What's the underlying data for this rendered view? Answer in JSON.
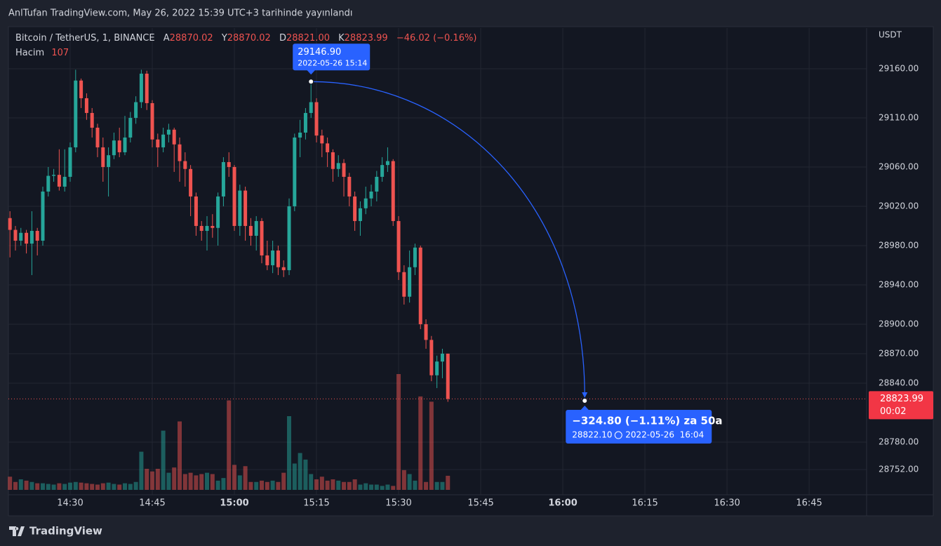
{
  "publish_note": "AnlTufan TradingView.com, May 26, 2022 15:39 UTC+3 tarihinde yayınlandı",
  "header": {
    "symbol": "Bitcoin / TetherUS, 1, BINANCE",
    "open_key": "A",
    "open": "28870.02",
    "high_key": "Y",
    "high": "28870.02",
    "low_key": "D",
    "low": "28821.00",
    "close_key": "K",
    "close": "28823.99",
    "change": "−46.02 (−0.16%)",
    "volume_key": "Hacim",
    "volume": "107"
  },
  "brand": "TradingView",
  "chart_data": {
    "type": "candlestick",
    "currency": "USDT",
    "up_color": "#26a69a",
    "down_color": "#ef5350",
    "x": [
      859,
      860,
      861,
      862,
      863,
      864,
      865,
      866,
      867,
      868,
      869,
      870,
      871,
      872,
      873,
      874,
      875,
      876,
      877,
      878,
      879,
      880,
      881,
      882,
      883,
      884,
      885,
      886,
      887,
      888,
      889,
      890,
      891,
      892,
      893,
      894,
      895,
      896,
      897,
      898,
      899,
      900,
      901,
      902,
      903,
      904,
      905,
      906,
      907,
      908,
      909,
      910,
      911,
      912,
      913,
      914,
      915,
      916,
      917,
      918,
      919,
      920,
      921,
      922,
      923,
      924,
      925,
      926,
      927,
      928,
      929,
      930,
      931,
      932,
      933,
      934,
      935,
      936,
      937,
      938,
      939
    ],
    "open": [
      29008,
      28996,
      28985,
      28993,
      28982,
      28995,
      28985,
      29035,
      29051,
      29052,
      29040,
      29050,
      29080,
      29148,
      29130,
      29115,
      29100,
      29080,
      29060,
      29072,
      29087,
      29075,
      29090,
      29110,
      29126,
      29155,
      29125,
      29088,
      29080,
      29093,
      29098,
      29083,
      29066,
      29058,
      29030,
      29000,
      28995,
      29000,
      28998,
      29030,
      29065,
      29060,
      29000,
      29036,
      29000,
      28990,
      29005,
      28970,
      28960,
      28975,
      28958,
      28955,
      29020,
      29090,
      29095,
      29115,
      29126,
      29092,
      29084,
      29075,
      29058,
      29064,
      29050,
      29030,
      29005,
      29018,
      29028,
      29035,
      29050,
      29062,
      29066,
      29005,
      28953,
      28928,
      28958,
      28978,
      28900,
      28884,
      28848,
      28862,
      28870.02
    ],
    "high": [
      29015,
      29000,
      28998,
      28996,
      29015,
      28998,
      29040,
      29060,
      29058,
      29078,
      29078,
      29085,
      29159,
      29150,
      29135,
      29120,
      29104,
      29090,
      29080,
      29095,
      29100,
      29112,
      29116,
      29132,
      29159,
      29158,
      29128,
      29094,
      29100,
      29104,
      29100,
      29090,
      29075,
      29062,
      29034,
      29005,
      29010,
      29012,
      29034,
      29070,
      29075,
      29062,
      29042,
      29040,
      29008,
      29010,
      29008,
      28985,
      28985,
      28980,
      28965,
      29028,
      29094,
      29108,
      29120,
      29146.9,
      29130,
      29098,
      29090,
      29078,
      29072,
      29068,
      29054,
      29035,
      29025,
      29040,
      29042,
      29056,
      29070,
      29080,
      29068,
      29010,
      28960,
      28975,
      28982,
      28980,
      28905,
      28888,
      28868,
      28875,
      28870.02
    ],
    "low": [
      28968,
      28975,
      28980,
      28972,
      28950,
      28970,
      28980,
      29030,
      29045,
      29036,
      29035,
      29045,
      29075,
      29120,
      29108,
      29090,
      29070,
      29045,
      29030,
      29068,
      29070,
      29072,
      29085,
      29104,
      29120,
      29118,
      29080,
      29060,
      29075,
      29085,
      29055,
      29045,
      29040,
      29010,
      28990,
      28985,
      28975,
      28988,
      28980,
      29020,
      29050,
      28995,
      28990,
      28985,
      28980,
      28975,
      28962,
      28955,
      28952,
      28950,
      28948,
      28950,
      29015,
      29070,
      29088,
      29110,
      29085,
      29070,
      29060,
      29045,
      29050,
      29030,
      29020,
      28995,
      28990,
      29012,
      29020,
      29025,
      29045,
      29055,
      29000,
      28945,
      28920,
      28922,
      28950,
      28895,
      28875,
      28842,
      28835,
      28845,
      28821
    ],
    "close": [
      28996,
      28985,
      28993,
      28982,
      28995,
      28985,
      29035,
      29051,
      29052,
      29040,
      29050,
      29080,
      29148,
      29130,
      29115,
      29100,
      29080,
      29060,
      29072,
      29087,
      29075,
      29090,
      29110,
      29126,
      29155,
      29125,
      29088,
      29080,
      29093,
      29098,
      29083,
      29066,
      29058,
      29030,
      29000,
      28995,
      29000,
      28998,
      29030,
      29065,
      29060,
      29000,
      29036,
      29000,
      28990,
      29005,
      28970,
      28960,
      28975,
      28958,
      28955,
      29020,
      29090,
      29095,
      29115,
      29126,
      29092,
      29084,
      29075,
      29058,
      29064,
      29050,
      29030,
      29005,
      29018,
      29028,
      29035,
      29050,
      29062,
      29066,
      29005,
      28953,
      28928,
      28958,
      28978,
      28900,
      28884,
      28848,
      28862,
      28870.02,
      28823.99
    ],
    "volume": [
      100,
      60,
      80,
      70,
      60,
      50,
      50,
      45,
      40,
      50,
      45,
      55,
      60,
      55,
      50,
      45,
      40,
      50,
      55,
      45,
      40,
      50,
      45,
      60,
      290,
      160,
      140,
      160,
      450,
      130,
      170,
      520,
      120,
      130,
      110,
      120,
      130,
      120,
      70,
      90,
      680,
      190,
      110,
      180,
      60,
      60,
      70,
      60,
      70,
      60,
      130,
      560,
      200,
      280,
      230,
      120,
      80,
      100,
      70,
      80,
      70,
      60,
      60,
      80,
      40,
      50,
      40,
      40,
      30,
      40,
      30,
      880,
      150,
      120,
      70,
      710,
      60,
      670,
      60,
      60,
      107
    ],
    "countdown": "00:02",
    "xlim": [
      858.72,
      1015.5
    ],
    "xticks": [
      {
        "value": 870,
        "label": "14:30"
      },
      {
        "value": 885,
        "label": "14:45"
      },
      {
        "value": 900,
        "label": "15:00"
      },
      {
        "value": 915,
        "label": "15:15"
      },
      {
        "value": 930,
        "label": "15:30"
      },
      {
        "value": 945,
        "label": "15:45"
      },
      {
        "value": 960,
        "label": "16:00"
      },
      {
        "value": 975,
        "label": "16:15"
      },
      {
        "value": 990,
        "label": "16:30"
      },
      {
        "value": 1005,
        "label": "16:45"
      }
    ],
    "ylim": [
      28726.4,
      29201.4
    ],
    "yticks": [
      {
        "value": 29160,
        "label": "29160.00"
      },
      {
        "value": 29110,
        "label": "29110.00"
      },
      {
        "value": 29060,
        "label": "29060.00"
      },
      {
        "value": 29020,
        "label": "29020.00"
      },
      {
        "value": 28980,
        "label": "28980.00"
      },
      {
        "value": 28940,
        "label": "28940.00"
      },
      {
        "value": 28900,
        "label": "28900.00"
      },
      {
        "value": 28870,
        "label": "28870.00"
      },
      {
        "value": 28840,
        "label": "28840.00"
      },
      {
        "value": 28780,
        "label": "28780.00"
      },
      {
        "value": 28752,
        "label": "28752.00"
      }
    ],
    "grid": true,
    "measure": {
      "color": "#2962ff",
      "from": {
        "x": 914,
        "price": 29146.9,
        "price_label": "29146.90",
        "time_label": "2022-05-26 15:14"
      },
      "to": {
        "x": 964,
        "price": 28822.1,
        "change_label": "−324.80 (−1.11%) za 50a",
        "price_label": "28822.10",
        "time_label": "2022-05-26  16:04"
      }
    }
  }
}
